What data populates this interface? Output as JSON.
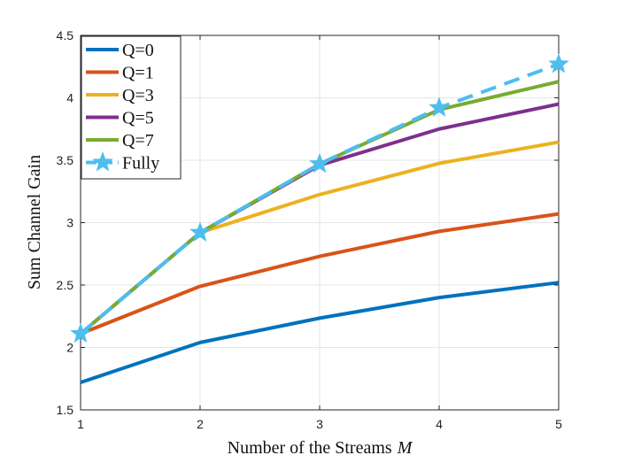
{
  "chart_data": {
    "type": "line",
    "title": "",
    "xlabel_main": "Number of the Streams",
    "xlabel_var": "M",
    "ylabel": "Sum Channel Gain",
    "x": [
      1,
      2,
      3,
      4,
      5
    ],
    "xlim": [
      1,
      5
    ],
    "ylim": [
      1.5,
      4.5
    ],
    "xticks": [
      1,
      2,
      3,
      4,
      5
    ],
    "xtick_labels": [
      "1",
      "2",
      "3",
      "4",
      "5"
    ],
    "yticks": [
      1.5,
      2,
      2.5,
      3,
      3.5,
      4,
      4.5
    ],
    "ytick_labels": [
      "1.5",
      "2",
      "2.5",
      "3",
      "3.5",
      "4",
      "4.5"
    ],
    "grid": true,
    "legend_position": "top-left",
    "series": [
      {
        "name": "Q=0",
        "color": "#0072BD",
        "dash": "solid",
        "marker": "none",
        "values": [
          1.72,
          2.04,
          2.235,
          2.4,
          2.52
        ]
      },
      {
        "name": "Q=1",
        "color": "#D95319",
        "dash": "solid",
        "marker": "none",
        "values": [
          2.11,
          2.49,
          2.73,
          2.93,
          3.07
        ]
      },
      {
        "name": "Q=3",
        "color": "#EDB120",
        "dash": "solid",
        "marker": "none",
        "values": [
          2.11,
          2.92,
          3.225,
          3.475,
          3.645
        ]
      },
      {
        "name": "Q=5",
        "color": "#7E2F8E",
        "dash": "solid",
        "marker": "none",
        "values": [
          2.11,
          2.92,
          3.46,
          3.75,
          3.95
        ]
      },
      {
        "name": "Q=7",
        "color": "#77AC30",
        "dash": "solid",
        "marker": "none",
        "values": [
          2.11,
          2.92,
          3.47,
          3.905,
          4.13
        ]
      },
      {
        "name": "Fully",
        "color": "#4DBEEE",
        "dash": "dashed",
        "marker": "star",
        "values": [
          2.11,
          2.92,
          3.47,
          3.92,
          4.27
        ]
      }
    ]
  }
}
